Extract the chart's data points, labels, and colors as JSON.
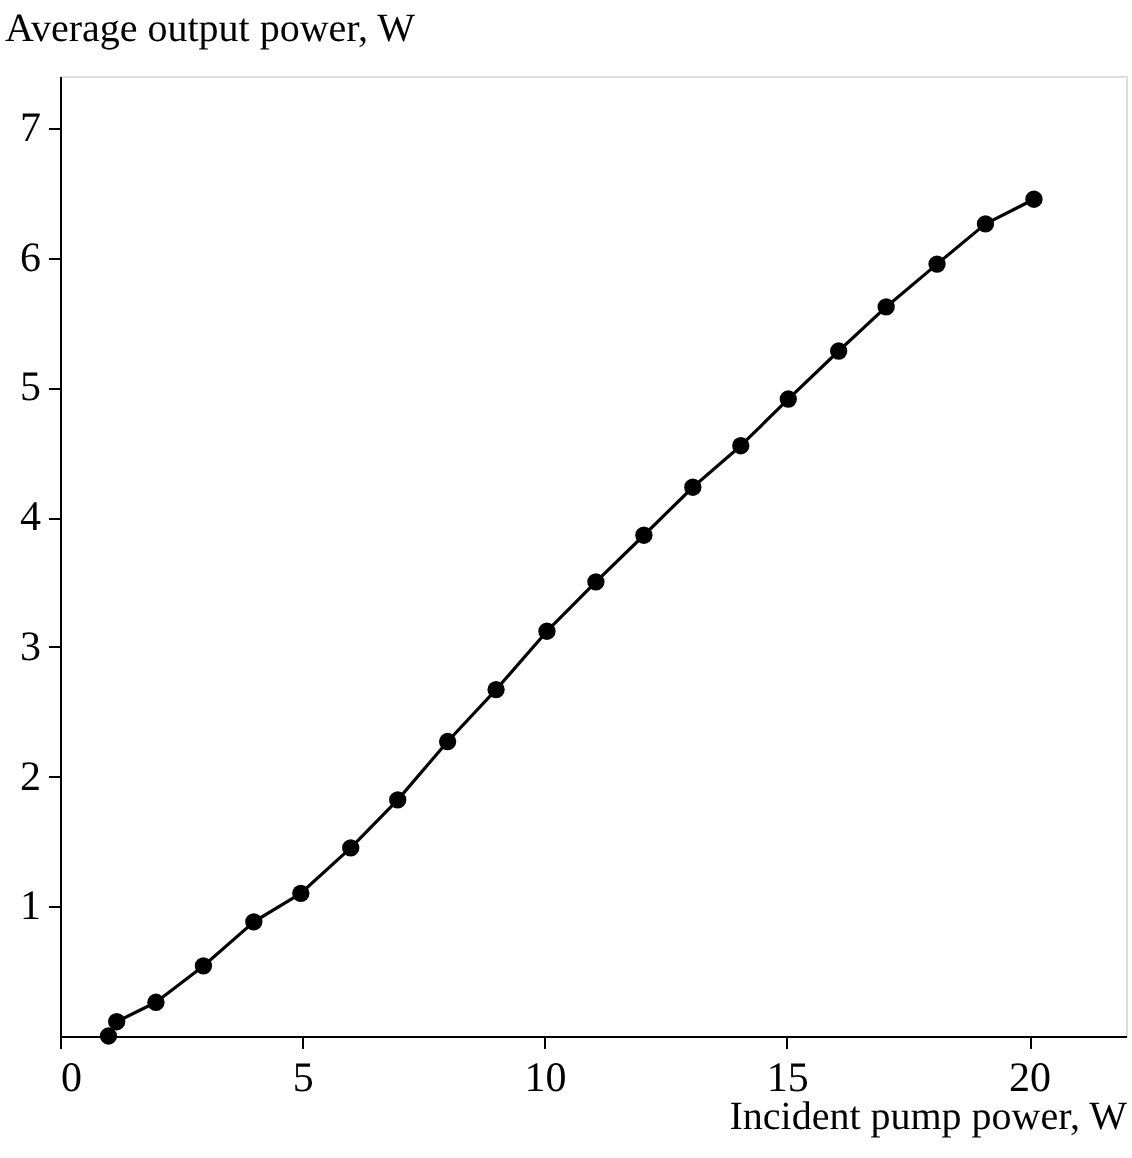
{
  "chart_data": {
    "type": "line",
    "xlabel": "Incident pump power, W",
    "ylabel": "Average output power, W",
    "x": [
      1.0,
      1.17,
      1.98,
      2.96,
      4.0,
      4.97,
      6.0,
      6.97,
      8.0,
      9.0,
      10.05,
      11.06,
      12.05,
      13.06,
      14.05,
      15.03,
      16.07,
      17.05,
      18.1,
      19.1,
      20.1
    ],
    "series": [
      {
        "color": "#000000",
        "values": [
          0.0,
          0.11,
          0.26,
          0.54,
          0.88,
          1.1,
          1.45,
          1.82,
          2.27,
          2.67,
          3.12,
          3.5,
          3.86,
          4.23,
          4.55,
          4.91,
          5.28,
          5.62,
          5.95,
          6.26,
          6.45
        ]
      }
    ],
    "xlim": [
      0,
      22
    ],
    "ylim": [
      0,
      7.4
    ],
    "xticks": [
      0,
      5,
      10,
      15,
      20
    ],
    "yticks": [
      1,
      2,
      3,
      4,
      5,
      6,
      7
    ],
    "marker": "circle",
    "line_style": "solid",
    "grid": false
  }
}
